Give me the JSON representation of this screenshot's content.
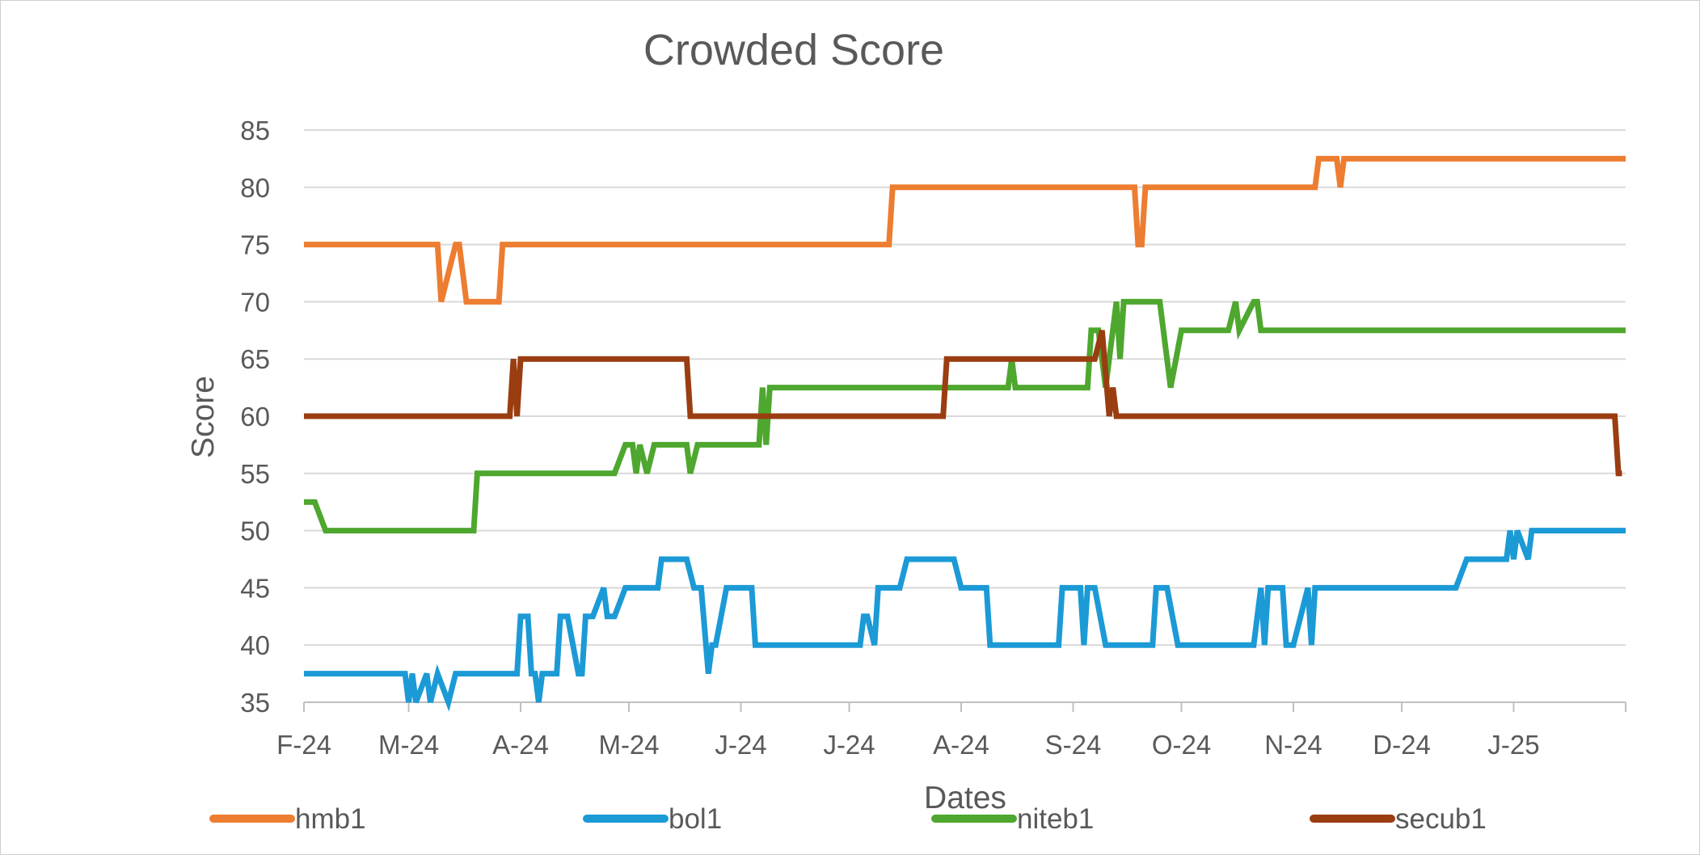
{
  "chart_data": {
    "type": "line",
    "title": "Crowded Score",
    "xlabel": "Dates",
    "ylabel": "Score",
    "ylim": [
      35,
      85
    ],
    "yticks": [
      35,
      40,
      45,
      50,
      55,
      60,
      65,
      70,
      75,
      80,
      85
    ],
    "xlim": [
      "2024-02-01",
      "2025-02-01"
    ],
    "xticks": [
      {
        "date": "2024-02-01",
        "label": "F-24"
      },
      {
        "date": "2024-03-01",
        "label": "M-24"
      },
      {
        "date": "2024-04-01",
        "label": "A-24"
      },
      {
        "date": "2024-05-01",
        "label": "M-24"
      },
      {
        "date": "2024-06-01",
        "label": "J-24"
      },
      {
        "date": "2024-07-01",
        "label": "J-24"
      },
      {
        "date": "2024-08-01",
        "label": "A-24"
      },
      {
        "date": "2024-09-01",
        "label": "S-24"
      },
      {
        "date": "2024-10-01",
        "label": "O-24"
      },
      {
        "date": "2024-11-01",
        "label": "N-24"
      },
      {
        "date": "2024-12-01",
        "label": "D-24"
      },
      {
        "date": "2025-01-01",
        "label": "J-25"
      },
      {
        "date": "2025-02-01",
        "label": ""
      }
    ],
    "grid": true,
    "legend_position": "bottom",
    "series": [
      {
        "name": "hmb1",
        "color": "#ed7d31",
        "points": [
          [
            "2024-02-01",
            75
          ],
          [
            "2024-03-09",
            75
          ],
          [
            "2024-03-10",
            70
          ],
          [
            "2024-03-14",
            75
          ],
          [
            "2024-03-15",
            75
          ],
          [
            "2024-03-17",
            70
          ],
          [
            "2024-03-26",
            70
          ],
          [
            "2024-03-27",
            75
          ],
          [
            "2024-07-12",
            75
          ],
          [
            "2024-07-13",
            80
          ],
          [
            "2024-09-18",
            80
          ],
          [
            "2024-09-19",
            75
          ],
          [
            "2024-09-20",
            75
          ],
          [
            "2024-09-21",
            80
          ],
          [
            "2024-11-07",
            80
          ],
          [
            "2024-11-08",
            82.5
          ],
          [
            "2024-11-13",
            82.5
          ],
          [
            "2024-11-14",
            80
          ],
          [
            "2024-11-15",
            82.5
          ],
          [
            "2025-02-01",
            82.5
          ]
        ]
      },
      {
        "name": "bol1",
        "color": "#1b9ad6",
        "points": [
          [
            "2024-02-01",
            37.5
          ],
          [
            "2024-02-29",
            37.5
          ],
          [
            "2024-03-01",
            35
          ],
          [
            "2024-03-02",
            37.5
          ],
          [
            "2024-03-03",
            35
          ],
          [
            "2024-03-06",
            37.5
          ],
          [
            "2024-03-07",
            35
          ],
          [
            "2024-03-09",
            37.5
          ],
          [
            "2024-03-12",
            35
          ],
          [
            "2024-03-14",
            37.5
          ],
          [
            "2024-03-31",
            37.5
          ],
          [
            "2024-04-01",
            42.5
          ],
          [
            "2024-04-03",
            42.5
          ],
          [
            "2024-04-04",
            37.5
          ],
          [
            "2024-04-05",
            37.5
          ],
          [
            "2024-04-06",
            35
          ],
          [
            "2024-04-07",
            37.5
          ],
          [
            "2024-04-11",
            37.5
          ],
          [
            "2024-04-12",
            42.5
          ],
          [
            "2024-04-14",
            42.5
          ],
          [
            "2024-04-17",
            37.5
          ],
          [
            "2024-04-18",
            37.5
          ],
          [
            "2024-04-19",
            42.5
          ],
          [
            "2024-04-21",
            42.5
          ],
          [
            "2024-04-24",
            45
          ],
          [
            "2024-04-25",
            42.5
          ],
          [
            "2024-04-27",
            42.5
          ],
          [
            "2024-04-30",
            45
          ],
          [
            "2024-05-09",
            45
          ],
          [
            "2024-05-10",
            47.5
          ],
          [
            "2024-05-17",
            47.5
          ],
          [
            "2024-05-19",
            45
          ],
          [
            "2024-05-21",
            45
          ],
          [
            "2024-05-23",
            37.5
          ],
          [
            "2024-05-24",
            40
          ],
          [
            "2024-05-25",
            40
          ],
          [
            "2024-05-28",
            45
          ],
          [
            "2024-06-04",
            45
          ],
          [
            "2024-06-05",
            40
          ],
          [
            "2024-06-29",
            40
          ],
          [
            "2024-07-04",
            40
          ],
          [
            "2024-07-05",
            42.5
          ],
          [
            "2024-07-06",
            42.5
          ],
          [
            "2024-07-08",
            40
          ],
          [
            "2024-07-09",
            45
          ],
          [
            "2024-07-15",
            45
          ],
          [
            "2024-07-17",
            47.5
          ],
          [
            "2024-07-30",
            47.5
          ],
          [
            "2024-08-01",
            45
          ],
          [
            "2024-08-08",
            45
          ],
          [
            "2024-08-09",
            40
          ],
          [
            "2024-08-28",
            40
          ],
          [
            "2024-08-29",
            45
          ],
          [
            "2024-09-03",
            45
          ],
          [
            "2024-09-04",
            40
          ],
          [
            "2024-09-05",
            45
          ],
          [
            "2024-09-07",
            45
          ],
          [
            "2024-09-10",
            40
          ],
          [
            "2024-09-23",
            40
          ],
          [
            "2024-09-24",
            45
          ],
          [
            "2024-09-27",
            45
          ],
          [
            "2024-09-30",
            40
          ],
          [
            "2024-10-21",
            40
          ],
          [
            "2024-10-23",
            45
          ],
          [
            "2024-10-24",
            40
          ],
          [
            "2024-10-25",
            45
          ],
          [
            "2024-10-29",
            45
          ],
          [
            "2024-10-30",
            40
          ],
          [
            "2024-11-01",
            40
          ],
          [
            "2024-11-05",
            45
          ],
          [
            "2024-11-06",
            40
          ],
          [
            "2024-11-07",
            45
          ],
          [
            "2024-12-16",
            45
          ],
          [
            "2024-12-19",
            47.5
          ],
          [
            "2024-12-30",
            47.5
          ],
          [
            "2024-12-31",
            50
          ],
          [
            "2025-01-01",
            47.5
          ],
          [
            "2025-01-02",
            50
          ],
          [
            "2025-01-05",
            47.5
          ],
          [
            "2025-01-06",
            50
          ],
          [
            "2025-02-01",
            50
          ]
        ]
      },
      {
        "name": "niteb1",
        "color": "#4ea72e",
        "points": [
          [
            "2024-02-01",
            52.5
          ],
          [
            "2024-02-04",
            52.5
          ],
          [
            "2024-02-07",
            50
          ],
          [
            "2024-03-19",
            50
          ],
          [
            "2024-03-20",
            55
          ],
          [
            "2024-04-27",
            55
          ],
          [
            "2024-04-30",
            57.5
          ],
          [
            "2024-05-02",
            57.5
          ],
          [
            "2024-05-03",
            55
          ],
          [
            "2024-05-04",
            57.5
          ],
          [
            "2024-05-06",
            55
          ],
          [
            "2024-05-08",
            57.5
          ],
          [
            "2024-05-17",
            57.5
          ],
          [
            "2024-05-18",
            55
          ],
          [
            "2024-05-20",
            57.5
          ],
          [
            "2024-06-06",
            57.5
          ],
          [
            "2024-06-07",
            62.5
          ],
          [
            "2024-06-08",
            57.5
          ],
          [
            "2024-06-09",
            62.5
          ],
          [
            "2024-08-14",
            62.5
          ],
          [
            "2024-08-15",
            65
          ],
          [
            "2024-08-16",
            62.5
          ],
          [
            "2024-09-05",
            62.5
          ],
          [
            "2024-09-06",
            67.5
          ],
          [
            "2024-09-08",
            67.5
          ],
          [
            "2024-09-10",
            62.5
          ],
          [
            "2024-09-13",
            70
          ],
          [
            "2024-09-14",
            65
          ],
          [
            "2024-09-15",
            70
          ],
          [
            "2024-09-25",
            70
          ],
          [
            "2024-09-26",
            67.5
          ],
          [
            "2024-09-28",
            62.5
          ],
          [
            "2024-10-01",
            67.5
          ],
          [
            "2024-10-14",
            67.5
          ],
          [
            "2024-10-16",
            70
          ],
          [
            "2024-10-17",
            67.5
          ],
          [
            "2024-10-21",
            70
          ],
          [
            "2024-10-22",
            70
          ],
          [
            "2024-10-23",
            67.5
          ],
          [
            "2025-02-01",
            67.5
          ]
        ]
      },
      {
        "name": "secub1",
        "color": "#9a3d11",
        "points": [
          [
            "2024-02-01",
            60
          ],
          [
            "2024-03-29",
            60
          ],
          [
            "2024-03-30",
            65
          ],
          [
            "2024-03-31",
            60
          ],
          [
            "2024-04-01",
            65
          ],
          [
            "2024-05-17",
            65
          ],
          [
            "2024-05-18",
            60
          ],
          [
            "2024-07-27",
            60
          ],
          [
            "2024-07-28",
            65
          ],
          [
            "2024-09-07",
            65
          ],
          [
            "2024-09-09",
            67.5
          ],
          [
            "2024-09-11",
            60
          ],
          [
            "2024-09-12",
            62.5
          ],
          [
            "2024-09-13",
            60
          ],
          [
            "2025-01-29",
            60
          ],
          [
            "2025-01-30",
            55
          ],
          [
            "2025-01-31",
            55
          ]
        ]
      }
    ]
  }
}
